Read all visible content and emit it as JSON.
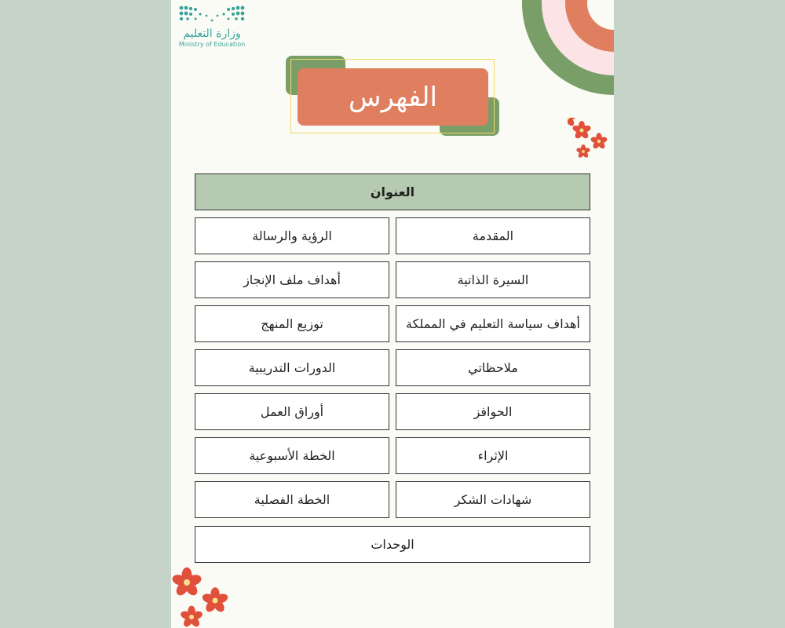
{
  "logo": {
    "arabic": "وزارة التعليم",
    "english": "Ministry of Education"
  },
  "title": "الفهرس",
  "table": {
    "header": "العنوان",
    "rows": [
      {
        "right": "المقدمة",
        "left": "الرؤية والرسالة"
      },
      {
        "right": "السيرة الذاتية",
        "left": "أهداف ملف الإنجاز"
      },
      {
        "right": "أهداف سياسة التعليم في المملكة",
        "left": "توزيع المنهج"
      },
      {
        "right": "ملاحظاتي",
        "left": "الدورات التدريبية"
      },
      {
        "right": "الحوافز",
        "left": "أوراق العمل"
      },
      {
        "right": "الإثراء",
        "left": "الخطة الأسبوعية"
      },
      {
        "right": "شهادات الشكر",
        "left": "الخطة الفصلية"
      }
    ],
    "footer": "الوحدات"
  },
  "colors": {
    "green": "#7a9e68",
    "orange": "#e07f5f",
    "pink": "#fbe3e6",
    "header_green": "#b6c9b1",
    "flower": "#e0503a"
  }
}
